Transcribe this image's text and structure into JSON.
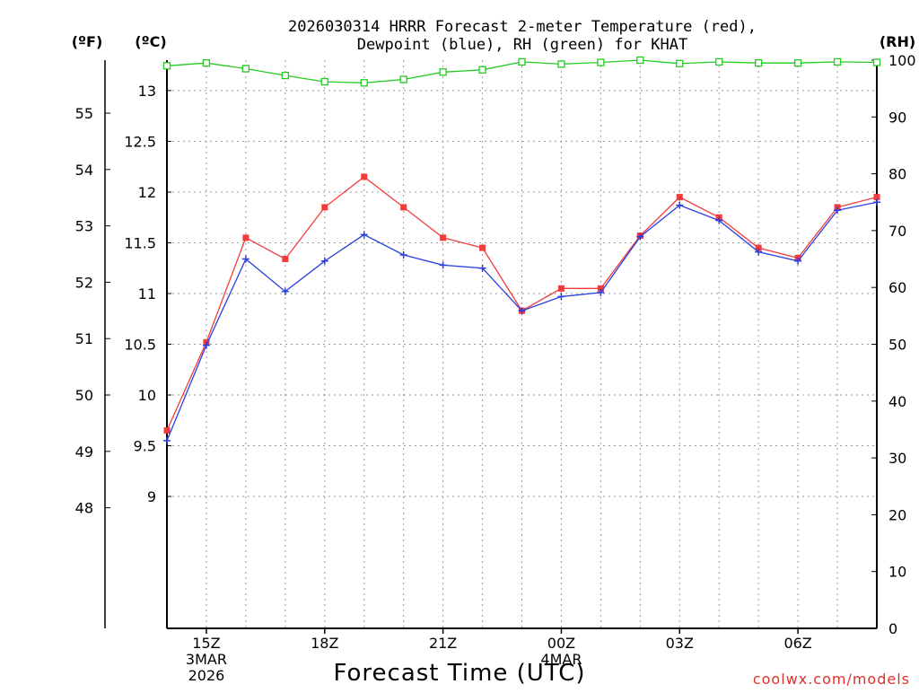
{
  "header": {
    "title_line1": "2026030314 HRRR Forecast 2-meter Temperature (red),",
    "title_line2": "Dewpoint (blue), RH (green) for KHAT"
  },
  "units": {
    "fahrenheit": "(ºF)",
    "celsius": "(ºC)",
    "rh": "(RH)"
  },
  "footer": {
    "xlabel": "Forecast Time (UTC)",
    "credit": "coolwx.com/models"
  },
  "colors": {
    "temperature": "#f03c3c",
    "dewpoint": "#2a3fe0",
    "rh": "#22cc22"
  },
  "chart_data": {
    "type": "line",
    "x_hours": [
      14,
      15,
      16,
      17,
      18,
      19,
      20,
      21,
      22,
      23,
      24,
      25,
      26,
      27,
      28,
      29,
      30,
      31,
      32
    ],
    "x_ticks": [
      {
        "hour": 15,
        "label": "15Z",
        "sub": [
          "3MAR",
          "2026"
        ]
      },
      {
        "hour": 18,
        "label": "18Z",
        "sub": []
      },
      {
        "hour": 21,
        "label": "21Z",
        "sub": []
      },
      {
        "hour": 24,
        "label": "00Z",
        "sub": [
          "4MAR"
        ]
      },
      {
        "hour": 27,
        "label": "03Z",
        "sub": []
      },
      {
        "hour": 30,
        "label": "06Z",
        "sub": []
      }
    ],
    "xlim": [
      14,
      32
    ],
    "celsius_axis": {
      "ylim": [
        7.7,
        13.3
      ],
      "ticks": [
        9,
        9.5,
        10,
        10.5,
        11,
        11.5,
        12,
        12.5,
        13
      ]
    },
    "fahrenheit_axis": {
      "ticks": [
        48,
        49,
        50,
        51,
        52,
        53,
        54,
        55
      ]
    },
    "rh_axis": {
      "ylim": [
        0,
        100
      ],
      "ticks": [
        0,
        10,
        20,
        30,
        40,
        50,
        60,
        70,
        80,
        90,
        100
      ]
    },
    "series": [
      {
        "name": "Temperature",
        "axis": "celsius",
        "marker": "filled-square",
        "values": [
          9.65,
          10.52,
          11.55,
          11.34,
          11.85,
          12.15,
          11.85,
          11.55,
          11.45,
          10.83,
          11.05,
          11.05,
          11.57,
          11.95,
          11.75,
          11.45,
          11.35,
          11.85,
          11.95
        ]
      },
      {
        "name": "Dewpoint",
        "axis": "celsius",
        "marker": "plus",
        "values": [
          9.55,
          10.49,
          11.34,
          11.02,
          11.32,
          11.58,
          11.38,
          11.28,
          11.25,
          10.83,
          10.97,
          11.01,
          11.56,
          11.87,
          11.72,
          11.41,
          11.32,
          11.82,
          11.9
        ]
      },
      {
        "name": "RH",
        "axis": "rh",
        "marker": "open-square",
        "values": [
          99.0,
          99.5,
          98.5,
          97.3,
          96.2,
          96.0,
          96.6,
          97.9,
          98.3,
          99.7,
          99.3,
          99.6,
          100.0,
          99.4,
          99.7,
          99.5,
          99.5,
          99.7,
          99.6
        ]
      }
    ]
  }
}
